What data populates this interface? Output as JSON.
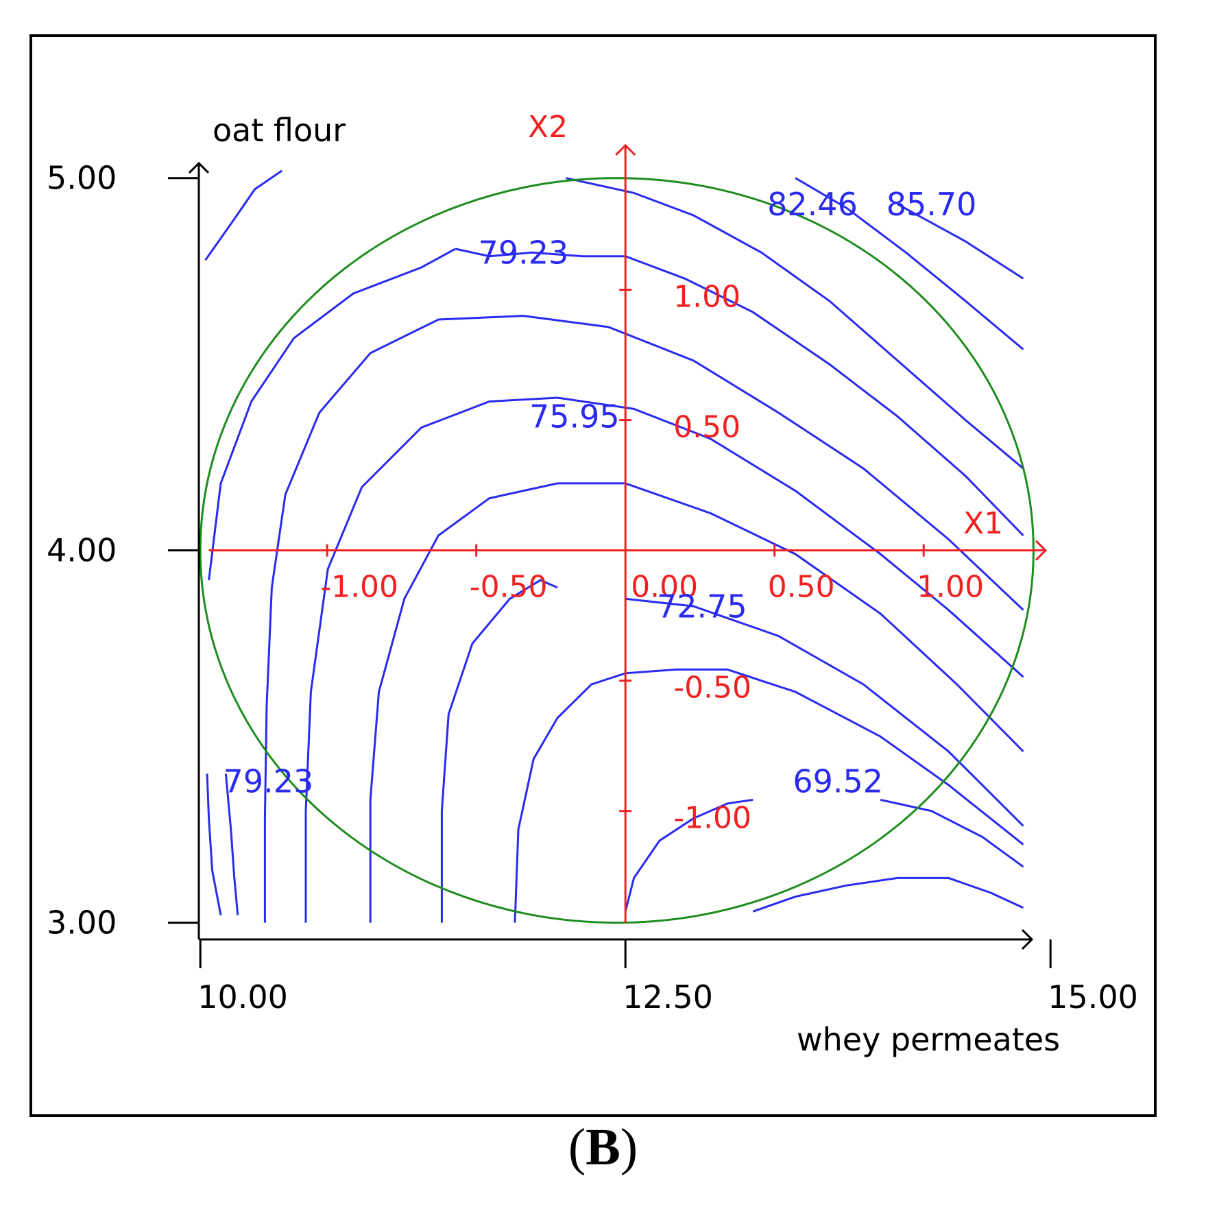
{
  "chart_data": {
    "type": "contour",
    "panel_label": "B",
    "caption_open": "(",
    "caption_close": ")",
    "xlabel": "whey permeates",
    "ylabel": "oat flour",
    "x_ticks": [
      "10.00",
      "12.50",
      "15.00"
    ],
    "y_ticks": [
      "5.00",
      "4.00",
      "3.00"
    ],
    "xlim": [
      9.85,
      14.85
    ],
    "ylim": [
      2.955,
      5.11
    ],
    "coded_axes": {
      "x_name": "X1",
      "y_name": "X2",
      "x_ticks": [
        "-1.00",
        "-0.50",
        "0.00",
        "0.50",
        "1.00"
      ],
      "y_ticks": [
        "1.00",
        "0.50",
        "-0.50",
        "-1.00"
      ],
      "center": [
        12.5,
        4.0
      ],
      "x_step": 0.877,
      "y_step": 0.35
    },
    "design_region": {
      "shape": "circle",
      "center": [
        12.45,
        4.0
      ],
      "radius_x": 2.45,
      "radius_y": 1.0
    },
    "contour_labels": [
      {
        "text": "82.46",
        "x": 13.6,
        "y": 4.9
      },
      {
        "text": "85.70",
        "x": 14.3,
        "y": 4.9
      },
      {
        "text": "79.23",
        "x": 11.9,
        "y": 4.77
      },
      {
        "text": "75.95",
        "x": 12.2,
        "y": 4.33
      },
      {
        "text": "72.75",
        "x": 12.95,
        "y": 3.82
      },
      {
        "text": "69.52",
        "x": 13.75,
        "y": 3.35
      },
      {
        "text": "79.23",
        "x": 10.4,
        "y": 3.35
      }
    ],
    "contours": [
      [
        [
          10.03,
          4.78
        ],
        [
          10.2,
          4.89
        ],
        [
          10.32,
          4.97
        ],
        [
          10.48,
          5.02
        ]
      ],
      [
        [
          12.15,
          5.0
        ],
        [
          12.55,
          4.96
        ],
        [
          12.9,
          4.9
        ],
        [
          13.3,
          4.8
        ],
        [
          13.7,
          4.67
        ],
        [
          14.1,
          4.51
        ],
        [
          14.5,
          4.35
        ],
        [
          14.84,
          4.22
        ]
      ],
      [
        [
          13.5,
          5.0
        ],
        [
          13.8,
          4.92
        ],
        [
          14.15,
          4.8
        ],
        [
          14.5,
          4.67
        ],
        [
          14.84,
          4.54
        ]
      ],
      [
        [
          14.1,
          4.93
        ],
        [
          14.5,
          4.83
        ],
        [
          14.84,
          4.73
        ]
      ],
      [
        [
          11.5,
          4.81
        ],
        [
          11.7,
          4.79
        ],
        [
          11.95,
          4.8
        ],
        [
          12.25,
          4.79
        ],
        [
          12.5,
          4.79
        ],
        [
          12.85,
          4.73
        ],
        [
          13.25,
          4.64
        ],
        [
          13.7,
          4.5
        ],
        [
          14.1,
          4.36
        ],
        [
          14.5,
          4.2
        ],
        [
          14.84,
          4.04
        ]
      ],
      [
        [
          10.05,
          3.92
        ],
        [
          10.12,
          4.18
        ],
        [
          10.3,
          4.4
        ],
        [
          10.55,
          4.57
        ],
        [
          10.9,
          4.69
        ],
        [
          11.3,
          4.76
        ],
        [
          11.5,
          4.81
        ]
      ],
      [
        [
          10.38,
          3.0
        ],
        [
          10.38,
          3.28
        ],
        [
          10.39,
          3.58
        ],
        [
          10.42,
          3.9
        ],
        [
          10.5,
          4.15
        ],
        [
          10.7,
          4.37
        ],
        [
          11.0,
          4.53
        ],
        [
          11.4,
          4.62
        ],
        [
          11.9,
          4.63
        ],
        [
          12.4,
          4.6
        ],
        [
          12.9,
          4.51
        ],
        [
          13.4,
          4.37
        ],
        [
          13.9,
          4.22
        ],
        [
          14.4,
          4.03
        ],
        [
          14.84,
          3.84
        ]
      ],
      [
        [
          10.62,
          3.0
        ],
        [
          10.62,
          3.3
        ],
        [
          10.65,
          3.62
        ],
        [
          10.75,
          3.95
        ],
        [
          10.95,
          4.17
        ],
        [
          11.3,
          4.33
        ],
        [
          11.7,
          4.4
        ],
        [
          12.1,
          4.41
        ],
        [
          12.55,
          4.38
        ],
        [
          13.0,
          4.3
        ],
        [
          13.5,
          4.16
        ],
        [
          14.0,
          3.99
        ],
        [
          14.4,
          3.84
        ],
        [
          14.84,
          3.66
        ]
      ],
      [
        [
          11.0,
          3.0
        ],
        [
          11.0,
          3.33
        ],
        [
          11.05,
          3.62
        ],
        [
          11.2,
          3.87
        ],
        [
          11.4,
          4.04
        ],
        [
          11.7,
          4.14
        ],
        [
          12.1,
          4.18
        ],
        [
          12.5,
          4.18
        ],
        [
          13.0,
          4.1
        ],
        [
          13.5,
          3.99
        ],
        [
          14.0,
          3.83
        ],
        [
          14.45,
          3.64
        ],
        [
          14.84,
          3.46
        ]
      ],
      [
        [
          11.42,
          3.0
        ],
        [
          11.42,
          3.3
        ],
        [
          11.46,
          3.56
        ],
        [
          11.6,
          3.75
        ],
        [
          11.82,
          3.87
        ],
        [
          12.0,
          3.92
        ],
        [
          12.1,
          3.9
        ]
      ],
      [
        [
          12.5,
          3.87
        ],
        [
          12.9,
          3.85
        ],
        [
          13.4,
          3.77
        ],
        [
          13.9,
          3.64
        ],
        [
          14.4,
          3.46
        ],
        [
          14.84,
          3.26
        ]
      ],
      [
        [
          11.85,
          3.0
        ],
        [
          11.87,
          3.25
        ],
        [
          11.96,
          3.44
        ],
        [
          12.1,
          3.55
        ],
        [
          12.3,
          3.64
        ],
        [
          12.5,
          3.67
        ],
        [
          12.8,
          3.68
        ],
        [
          13.1,
          3.68
        ],
        [
          13.5,
          3.62
        ],
        [
          14.0,
          3.5
        ],
        [
          14.4,
          3.37
        ],
        [
          14.84,
          3.21
        ]
      ],
      [
        [
          12.5,
          3.03
        ],
        [
          12.55,
          3.12
        ],
        [
          12.7,
          3.22
        ],
        [
          12.9,
          3.28
        ],
        [
          13.1,
          3.32
        ],
        [
          13.25,
          3.33
        ]
      ],
      [
        [
          14.0,
          3.33
        ],
        [
          14.3,
          3.3
        ],
        [
          14.6,
          3.23
        ],
        [
          14.84,
          3.15
        ]
      ],
      [
        [
          13.25,
          3.03
        ],
        [
          13.5,
          3.07
        ],
        [
          13.8,
          3.1
        ],
        [
          14.1,
          3.12
        ],
        [
          14.4,
          3.12
        ],
        [
          14.65,
          3.08
        ],
        [
          14.84,
          3.04
        ]
      ],
      [
        [
          10.04,
          3.4
        ],
        [
          10.05,
          3.28
        ],
        [
          10.07,
          3.14
        ],
        [
          10.12,
          3.02
        ]
      ],
      [
        [
          10.15,
          3.4
        ],
        [
          10.18,
          3.25
        ],
        [
          10.2,
          3.12
        ],
        [
          10.22,
          3.02
        ]
      ]
    ]
  }
}
